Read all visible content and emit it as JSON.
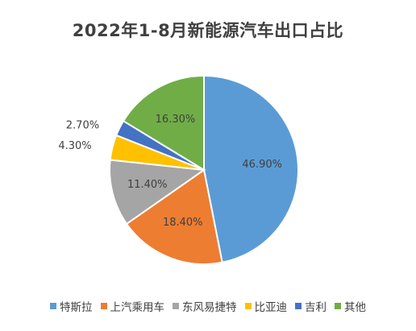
{
  "chart_data": {
    "type": "pie",
    "title": "2022年1-8月新能源汽车出口占比",
    "categories": [
      "特斯拉",
      "上汽乘用车",
      "东风易捷特",
      "比亚迪",
      "吉利",
      "其他"
    ],
    "values": [
      46.9,
      18.4,
      11.4,
      4.3,
      2.7,
      16.3
    ],
    "data_labels": [
      "46.90%",
      "18.40%",
      "11.40%",
      "4.30%",
      "2.70%",
      "16.30%"
    ],
    "colors": [
      "#5B9BD5",
      "#ED7D31",
      "#A5A5A5",
      "#FFC000",
      "#4472C4",
      "#70AD47"
    ],
    "legend_position": "bottom",
    "start_angle": "12 o'clock, clockwise"
  }
}
